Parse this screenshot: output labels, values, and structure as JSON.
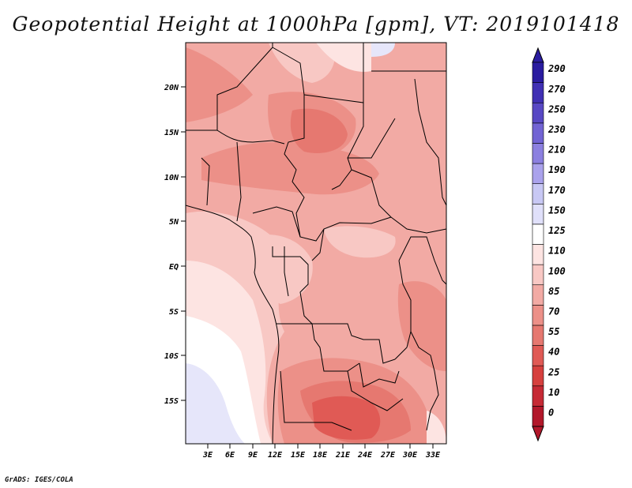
{
  "title": "Geopotential Height at 1000hPa [gpm], VT: 2019101418",
  "credit": "GrADS: IGES/COLA",
  "map": {
    "lat_labels": [
      "20N",
      "15N",
      "10N",
      "5N",
      "EQ",
      "5S",
      "10S",
      "15S"
    ],
    "lon_labels": [
      "3E",
      "6E",
      "9E",
      "12E",
      "15E",
      "18E",
      "21E",
      "24E",
      "27E",
      "30E",
      "33E"
    ]
  },
  "colorbar": {
    "labels": [
      "0",
      "10",
      "25",
      "40",
      "55",
      "70",
      "85",
      "100",
      "110",
      "125",
      "150",
      "170",
      "190",
      "210",
      "230",
      "250",
      "270",
      "290"
    ],
    "colors": [
      "#b2182b",
      "#c62a35",
      "#d6403e",
      "#e05a55",
      "#e67870",
      "#ec9088",
      "#f2aaa4",
      "#f8c8c4",
      "#fde4e2",
      "#ffffff",
      "#e0e0fa",
      "#c8c8f4",
      "#aaa2ec",
      "#8c80e0",
      "#7264d4",
      "#5848c4",
      "#4030b4",
      "#2a1ca0"
    ]
  }
}
